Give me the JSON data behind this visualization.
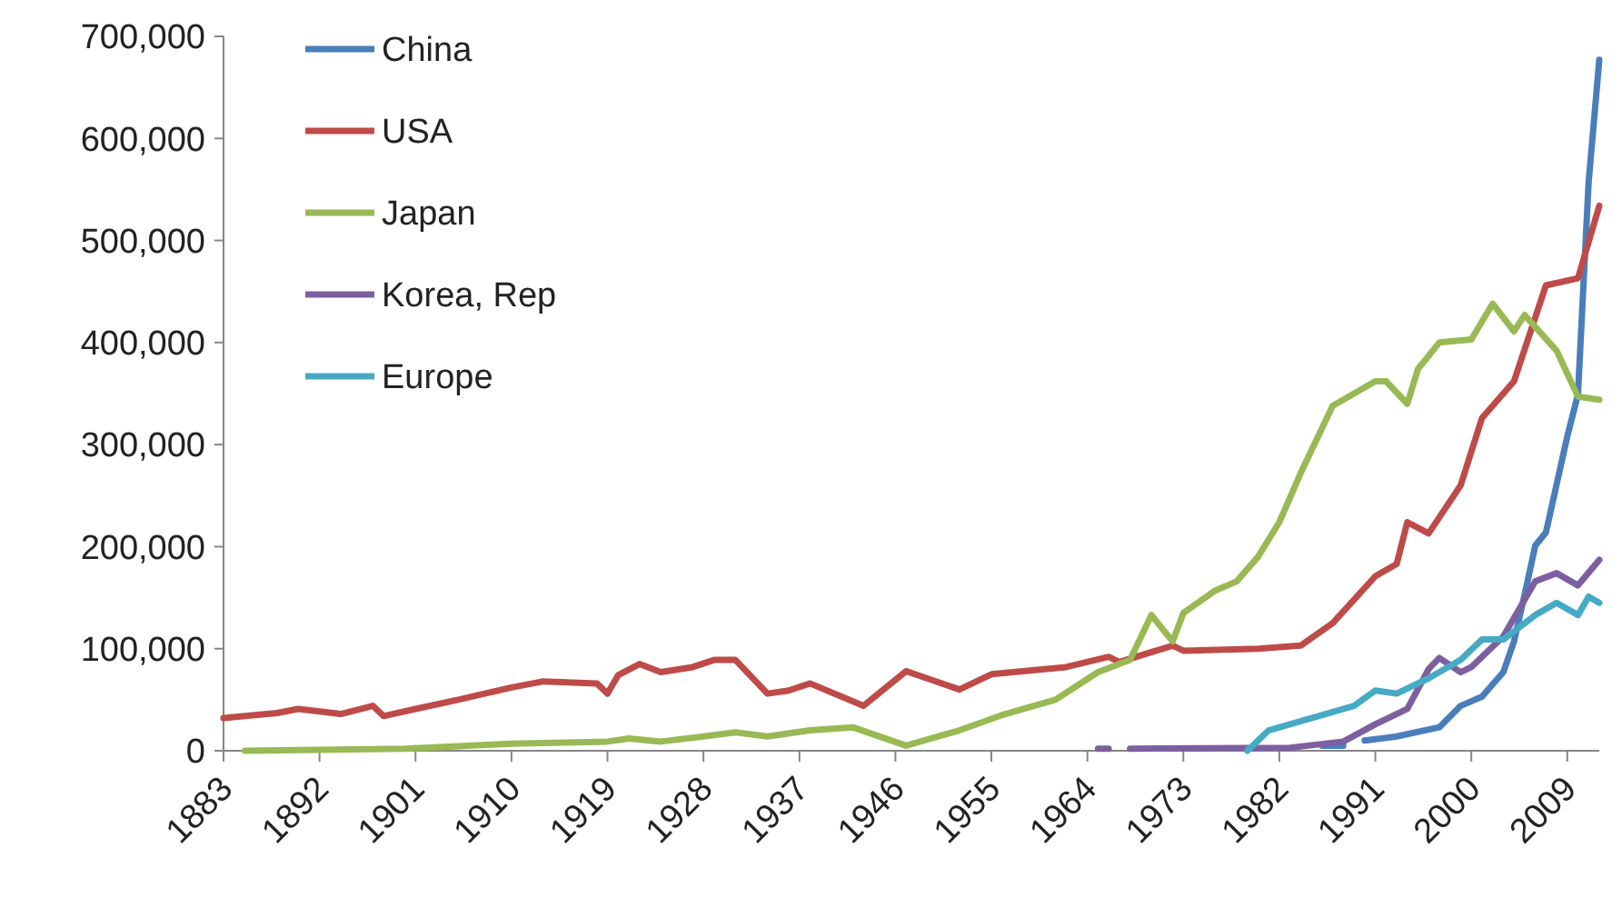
{
  "chart_data": {
    "type": "line",
    "xlim": [
      1883,
      2012
    ],
    "xticks": [
      1883,
      1892,
      1901,
      1910,
      1919,
      1928,
      1937,
      1946,
      1955,
      1964,
      1973,
      1982,
      1991,
      2000,
      2009
    ],
    "ylim": [
      0,
      700000
    ],
    "yticks": [
      {
        "value": 0,
        "label": "0"
      },
      {
        "value": 100000,
        "label": "100,000"
      },
      {
        "value": 200000,
        "label": "200,000"
      },
      {
        "value": 300000,
        "label": "300,000"
      },
      {
        "value": 400000,
        "label": "400,000"
      },
      {
        "value": 500000,
        "label": "500,000"
      },
      {
        "value": 600000,
        "label": "600,000"
      },
      {
        "value": 700000,
        "label": "700,000"
      }
    ],
    "grid": false,
    "legend": "top left",
    "marker": "none",
    "line_style": "solid",
    "series": [
      {
        "name": "China",
        "color": "#4a7ebb",
        "x": [
          1986,
          1988,
          1989,
          1990,
          1993,
          1997,
          1999,
          2001,
          2003,
          2004,
          2005,
          2006,
          2007,
          2009,
          2010,
          2011,
          2012
        ],
        "values": [
          5000,
          5000,
          null,
          10000,
          14000,
          23000,
          44000,
          53000,
          77000,
          107000,
          153000,
          201000,
          214000,
          308000,
          349000,
          557000,
          677000
        ]
      },
      {
        "name": "USA",
        "color": "#be4b48",
        "x": [
          1883,
          1888,
          1890,
          1894,
          1897,
          1898,
          1901,
          1905,
          1910,
          1913,
          1918,
          1919,
          1920,
          1922,
          1924,
          1927,
          1929,
          1931,
          1934,
          1936,
          1938,
          1943,
          1947,
          1952,
          1955,
          1962,
          1966,
          1967,
          1972,
          1973,
          1980,
          1984,
          1987,
          1989,
          1991,
          1993,
          1994,
          1996,
          1999,
          2001,
          2004,
          2007,
          2010,
          2012
        ],
        "values": [
          32000,
          37000,
          41000,
          36000,
          44000,
          34000,
          41000,
          50000,
          62000,
          68000,
          66000,
          56000,
          74000,
          85000,
          77000,
          82000,
          89000,
          89000,
          56000,
          59000,
          66000,
          44000,
          78000,
          60000,
          75000,
          82000,
          92000,
          87000,
          103000,
          98000,
          100000,
          103000,
          125000,
          148000,
          171000,
          183000,
          224000,
          213000,
          260000,
          326000,
          362000,
          456000,
          463000,
          534000
        ]
      },
      {
        "name": "Japan",
        "color": "#98b954",
        "x": [
          1885,
          1900,
          1910,
          1919,
          1921,
          1924,
          1928,
          1931,
          1934,
          1938,
          1942,
          1947,
          1952,
          1956,
          1961,
          1965,
          1968,
          1970,
          1972,
          1973,
          1976,
          1978,
          1980,
          1982,
          1984,
          1987,
          1991,
          1992,
          1994,
          1995,
          1997,
          2000,
          2002,
          2004,
          2005,
          2008,
          2010,
          2012
        ],
        "values": [
          0,
          2000,
          7000,
          9000,
          12000,
          9000,
          14000,
          18000,
          14000,
          20000,
          23000,
          5000,
          20000,
          35000,
          50000,
          77000,
          89000,
          133000,
          107000,
          135000,
          157000,
          166000,
          190000,
          224000,
          272000,
          338000,
          362000,
          362000,
          340000,
          374000,
          400000,
          403000,
          438000,
          411000,
          427000,
          392000,
          347000,
          344000
        ]
      },
      {
        "name": "Korea, Rep",
        "color": "#7d5fa0",
        "x": [
          1965,
          1966,
          1967,
          1968,
          1983,
          1988,
          1991,
          1994,
          1996,
          1997,
          1999,
          2000,
          2003,
          2006,
          2008,
          2010,
          2012
        ],
        "values": [
          2000,
          2000,
          null,
          2000,
          3000,
          9000,
          26000,
          41000,
          80000,
          91000,
          77000,
          82000,
          112000,
          166000,
          174000,
          162000,
          187000
        ]
      },
      {
        "name": "Europe",
        "color": "#46aac5",
        "x": [
          1979,
          1981,
          1985,
          1989,
          1991,
          1993,
          1996,
          1999,
          2001,
          2003,
          2006,
          2008,
          2010,
          2011,
          2012
        ],
        "values": [
          0,
          20000,
          32000,
          44000,
          59000,
          56000,
          71000,
          89000,
          109000,
          109000,
          133000,
          145000,
          133000,
          151000,
          145000
        ]
      }
    ]
  }
}
